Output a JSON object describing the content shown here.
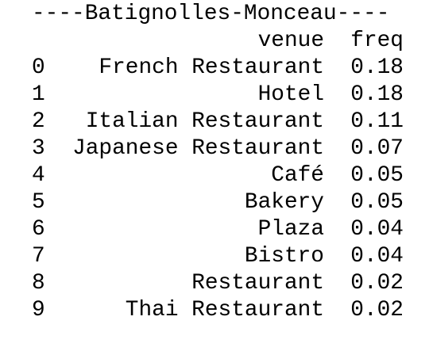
{
  "title": "----Batignolles-Monceau----",
  "table": {
    "columns": [
      "venue",
      "freq"
    ],
    "rows": [
      [
        0,
        "French Restaurant",
        0.18
      ],
      [
        1,
        "Hotel",
        0.18
      ],
      [
        2,
        "Italian Restaurant",
        0.11
      ],
      [
        3,
        "Japanese Restaurant",
        0.07
      ],
      [
        4,
        "Café",
        0.05
      ],
      [
        5,
        "Bakery",
        0.05
      ],
      [
        6,
        "Plaza",
        0.04
      ],
      [
        7,
        "Bistro",
        0.04
      ],
      [
        8,
        "Restaurant",
        0.02
      ],
      [
        9,
        "Thai Restaurant",
        0.02
      ]
    ]
  }
}
